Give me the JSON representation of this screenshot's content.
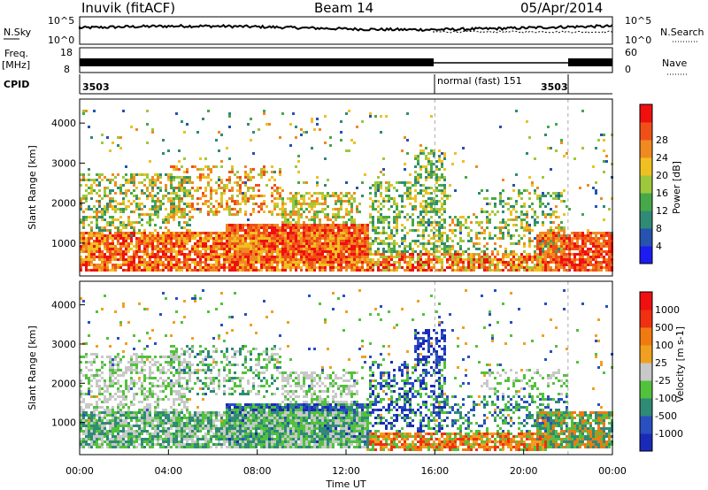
{
  "header": {
    "station": "Inuvik (fitACF)",
    "beam": "Beam 14",
    "date": "05/Apr/2014"
  },
  "strip": {
    "nsky_label": "N.Sky",
    "nsearch_label": "N.Search",
    "freq_label": "Freq.",
    "freq_unit": "[MHz]",
    "nave_label": "Nave",
    "cpid_label": "CPID",
    "noise_ticks_left": [
      "10^5",
      "10^0"
    ],
    "noise_ticks_right": [
      "10^5",
      "10^0"
    ],
    "freq_ticks": [
      "18",
      "8"
    ],
    "nave_ticks": [
      "60",
      "0"
    ],
    "cpid_segments": [
      {
        "label": "3503",
        "start_hour": 0,
        "end_hour": 16
      },
      {
        "label": "normal (fast) 151",
        "start_hour": 16,
        "end_hour": 22
      },
      {
        "label": "3503",
        "start_hour": 22,
        "end_hour": 24
      }
    ]
  },
  "chart_data": [
    {
      "type": "heatmap",
      "parameter": "Power",
      "ylabel": "Slant Range [km]",
      "xlabel": "",
      "ylim": [
        180,
        4600
      ],
      "xlim_hours": [
        0,
        24
      ],
      "yticks": [
        "1000",
        "2000",
        "3000",
        "4000"
      ],
      "colorbar": {
        "label": "Power [dB]",
        "ticks": [
          "4",
          "8",
          "12",
          "16",
          "20",
          "24",
          "28"
        ],
        "colors": [
          "#1c1cf0",
          "#2652b0",
          "#2f8a76",
          "#46a848",
          "#9ec83c",
          "#f0c020",
          "#f08a20",
          "#f05018",
          "#f01010"
        ]
      }
    },
    {
      "type": "heatmap",
      "parameter": "Velocity",
      "ylabel": "Slant Range [km]",
      "xlabel": "Time UT",
      "ylim": [
        180,
        4600
      ],
      "xlim_hours": [
        0,
        24
      ],
      "yticks": [
        "1000",
        "2000",
        "3000",
        "4000"
      ],
      "xticks": [
        "00:00",
        "04:00",
        "08:00",
        "12:00",
        "16:00",
        "20:00",
        "00:00"
      ],
      "colorbar": {
        "label": "Velocity [m s-1]",
        "ticks": [
          "1000",
          "500",
          "100",
          "25",
          "-25",
          "-100",
          "-500",
          "-1000"
        ],
        "colors": [
          "#1a2ab8",
          "#2850c0",
          "#2f8a76",
          "#52c23c",
          "#c8c8c8",
          "#f0a020",
          "#f07a10",
          "#f03010",
          "#f01010"
        ]
      }
    }
  ]
}
